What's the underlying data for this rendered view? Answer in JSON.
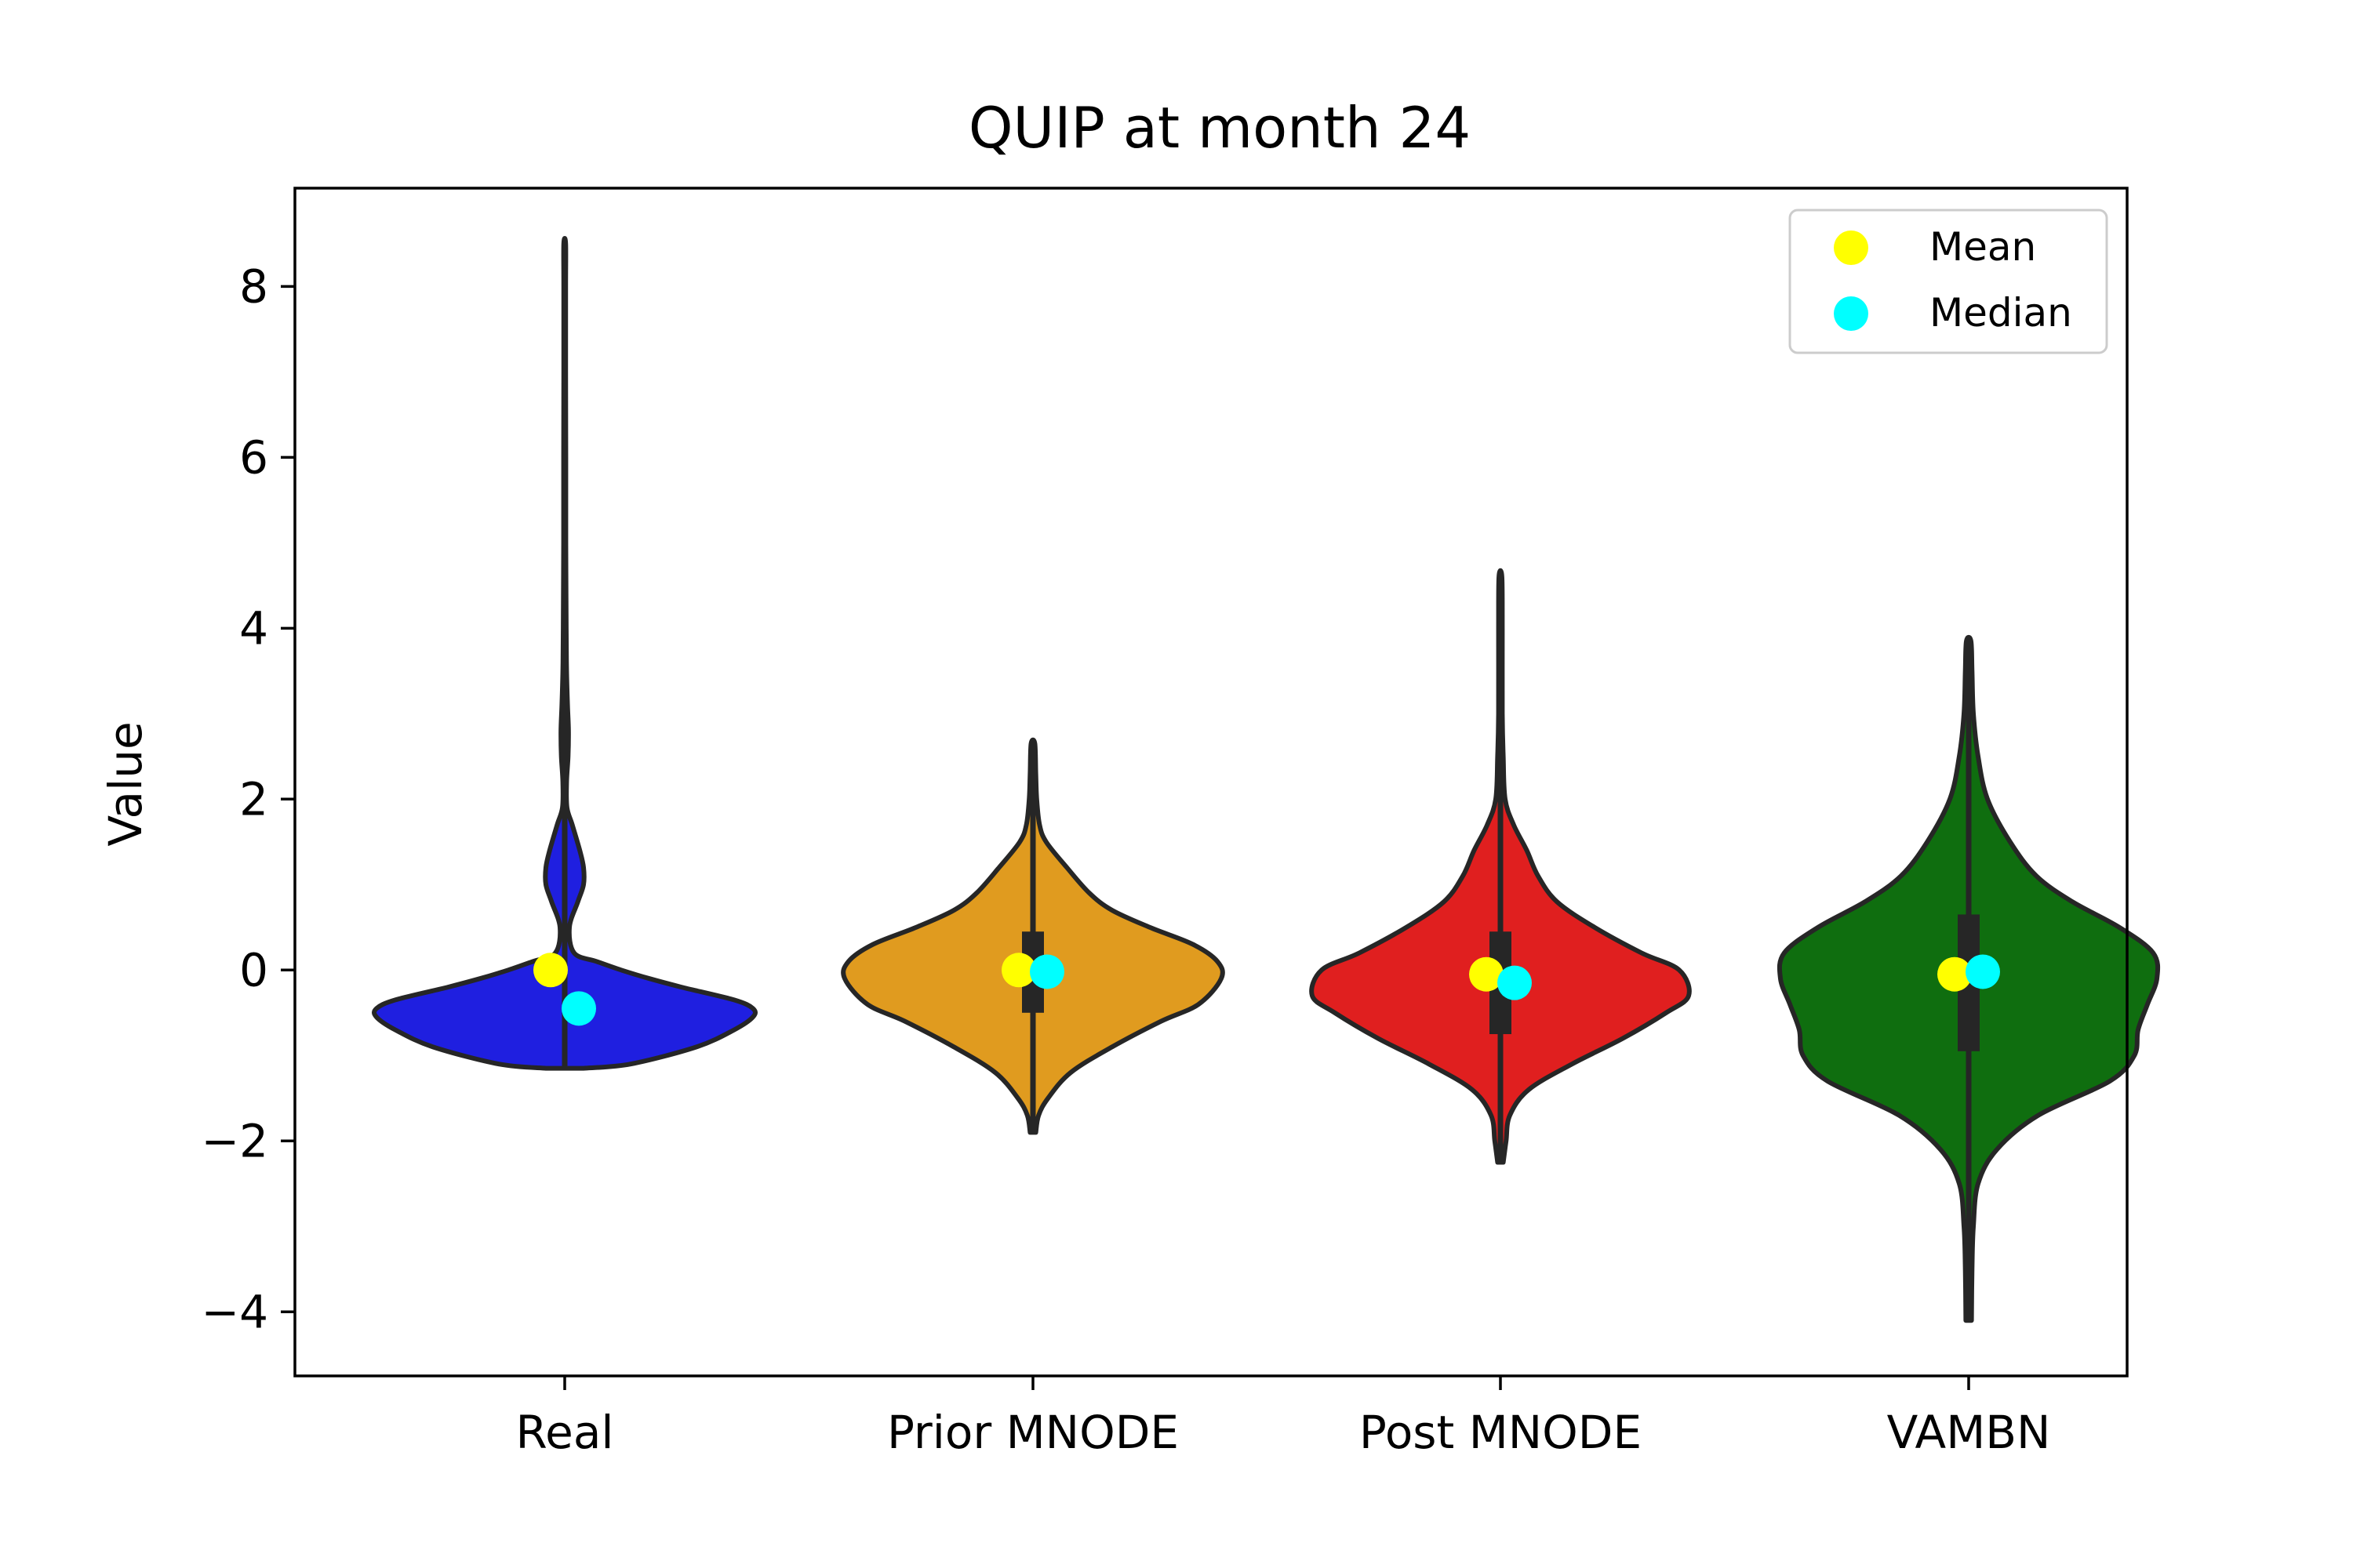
{
  "chart_data": {
    "type": "violin",
    "title": "QUIP at month 24",
    "xlabel": "",
    "ylabel": "Value",
    "ylim": [
      -4.75,
      9.15
    ],
    "yticks": [
      -4,
      -2,
      0,
      2,
      4,
      6,
      8
    ],
    "ytick_labels": [
      "−4",
      "−2",
      "0",
      "2",
      "4",
      "6",
      "8"
    ],
    "grid": false,
    "legend_position": "top-right",
    "legend": [
      {
        "label": "Mean",
        "color": "#ffff00"
      },
      {
        "label": "Median",
        "color": "#00ffff"
      }
    ],
    "categories": [
      "Real",
      "Prior MNODE",
      "Post MNODE",
      "VAMBN"
    ],
    "violins": [
      {
        "name": "Real",
        "color": "#1f1fe0",
        "min": -1.15,
        "max": 8.5,
        "mean": 0.0,
        "median": -0.45,
        "q1": -0.45,
        "q3": -0.45,
        "density": [
          [
            -1.15,
            0.1
          ],
          [
            -1.1,
            0.35
          ],
          [
            -0.9,
            0.7
          ],
          [
            -0.7,
            0.9
          ],
          [
            -0.55,
            1.0
          ],
          [
            -0.45,
            1.0
          ],
          [
            -0.35,
            0.9
          ],
          [
            -0.2,
            0.62
          ],
          [
            -0.1,
            0.45
          ],
          [
            0.0,
            0.3
          ],
          [
            0.1,
            0.17
          ],
          [
            0.2,
            0.05
          ],
          [
            0.5,
            0.025
          ],
          [
            0.8,
            0.07
          ],
          [
            1.0,
            0.1
          ],
          [
            1.2,
            0.1
          ],
          [
            1.4,
            0.08
          ],
          [
            1.7,
            0.04
          ],
          [
            1.9,
            0.012
          ],
          [
            2.2,
            0.01
          ],
          [
            2.5,
            0.018
          ],
          [
            2.8,
            0.02
          ],
          [
            3.1,
            0.015
          ],
          [
            3.5,
            0.01
          ],
          [
            4.0,
            0.008
          ],
          [
            5.0,
            0.006
          ],
          [
            6.0,
            0.006
          ],
          [
            7.0,
            0.005
          ],
          [
            8.0,
            0.005
          ],
          [
            8.5,
            0.005
          ]
        ]
      },
      {
        "name": "Prior MNODE",
        "color": "#e09b1f",
        "min": -1.9,
        "max": 2.65,
        "mean": 0.0,
        "median": -0.02,
        "q1": -0.5,
        "q3": 0.45,
        "density": [
          [
            -1.9,
            0.015
          ],
          [
            -1.7,
            0.03
          ],
          [
            -1.5,
            0.08
          ],
          [
            -1.2,
            0.2
          ],
          [
            -0.9,
            0.42
          ],
          [
            -0.6,
            0.68
          ],
          [
            -0.4,
            0.88
          ],
          [
            -0.1,
            1.0
          ],
          [
            0.1,
            0.98
          ],
          [
            0.3,
            0.85
          ],
          [
            0.5,
            0.62
          ],
          [
            0.7,
            0.42
          ],
          [
            0.9,
            0.3
          ],
          [
            1.2,
            0.18
          ],
          [
            1.5,
            0.07
          ],
          [
            1.7,
            0.035
          ],
          [
            2.0,
            0.02
          ],
          [
            2.3,
            0.015
          ],
          [
            2.65,
            0.01
          ]
        ]
      },
      {
        "name": "Post MNODE",
        "color": "#e01f1f",
        "min": -2.25,
        "max": 4.6,
        "mean": -0.05,
        "median": -0.15,
        "q1": -0.75,
        "q3": 0.45,
        "density": [
          [
            -2.25,
            0.015
          ],
          [
            -2.0,
            0.03
          ],
          [
            -1.7,
            0.05
          ],
          [
            -1.4,
            0.15
          ],
          [
            -1.1,
            0.38
          ],
          [
            -0.8,
            0.65
          ],
          [
            -0.5,
            0.88
          ],
          [
            -0.3,
            1.0
          ],
          [
            0.0,
            0.95
          ],
          [
            0.2,
            0.75
          ],
          [
            0.5,
            0.5
          ],
          [
            0.8,
            0.3
          ],
          [
            1.1,
            0.2
          ],
          [
            1.4,
            0.14
          ],
          [
            1.7,
            0.07
          ],
          [
            2.0,
            0.025
          ],
          [
            2.5,
            0.015
          ],
          [
            3.0,
            0.01
          ],
          [
            4.0,
            0.01
          ],
          [
            4.6,
            0.008
          ]
        ]
      },
      {
        "name": "VAMBN",
        "color": "#0f6e0f",
        "min": -4.1,
        "max": 3.85,
        "mean": -0.05,
        "median": -0.02,
        "q1": -0.95,
        "q3": 0.65,
        "density": [
          [
            -4.1,
            0.015
          ],
          [
            -3.5,
            0.018
          ],
          [
            -3.0,
            0.025
          ],
          [
            -2.5,
            0.05
          ],
          [
            -2.1,
            0.15
          ],
          [
            -1.7,
            0.37
          ],
          [
            -1.3,
            0.75
          ],
          [
            -1.0,
            0.88
          ],
          [
            -0.7,
            0.9
          ],
          [
            -0.4,
            0.95
          ],
          [
            -0.1,
            1.0
          ],
          [
            0.2,
            0.98
          ],
          [
            0.5,
            0.8
          ],
          [
            0.8,
            0.55
          ],
          [
            1.1,
            0.36
          ],
          [
            1.5,
            0.22
          ],
          [
            2.0,
            0.1
          ],
          [
            2.5,
            0.05
          ],
          [
            3.0,
            0.025
          ],
          [
            3.5,
            0.018
          ],
          [
            3.85,
            0.012
          ]
        ]
      }
    ]
  }
}
